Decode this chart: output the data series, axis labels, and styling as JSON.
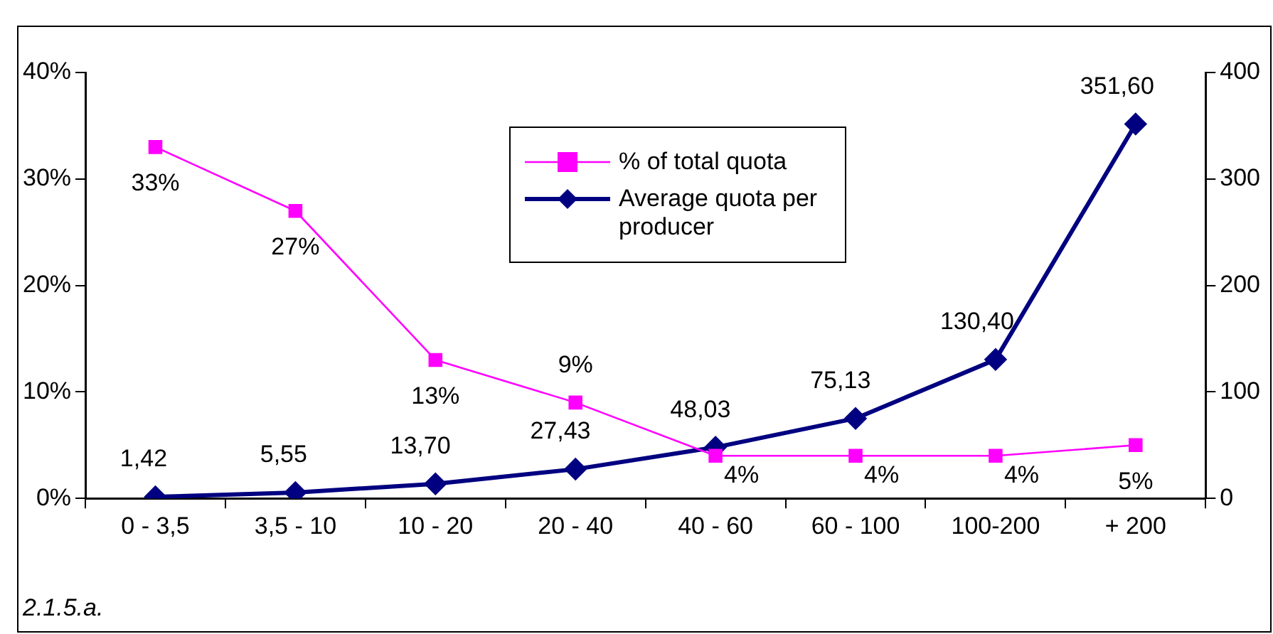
{
  "chart_data": {
    "type": "line",
    "categories": [
      "0 - 3,5",
      "3,5 - 10",
      "10 - 20",
      "20 - 40",
      "40 - 60",
      "60 - 100",
      "100-200",
      "+ 200"
    ],
    "series": [
      {
        "name": "% of total quota",
        "color": "#ff00ff",
        "marker": "square",
        "values": [
          33,
          27,
          13,
          9,
          4,
          4,
          4,
          5
        ],
        "value_labels": [
          "33%",
          "27%",
          "13%",
          "9%",
          "4%",
          "4%",
          "4%",
          "5%"
        ]
      },
      {
        "name": "Average quota per producer",
        "color": "#000080",
        "marker": "diamond",
        "axis": "y2",
        "values": [
          1.42,
          5.55,
          13.7,
          27.43,
          48.03,
          75.13,
          130.4,
          351.6
        ],
        "value_labels": [
          "1,42",
          "5,55",
          "13,70",
          "27,43",
          "48,03",
          "75,13",
          "130,40",
          "351,60"
        ]
      }
    ],
    "ylim": [
      0,
      40
    ],
    "yticks": [
      {
        "value": 0,
        "label": "0%"
      },
      {
        "value": 10,
        "label": "10%"
      },
      {
        "value": 20,
        "label": "20%"
      },
      {
        "value": 30,
        "label": "30%"
      },
      {
        "value": 40,
        "label": "40%"
      }
    ],
    "y2lim": [
      0,
      400
    ],
    "y2ticks": [
      0,
      100,
      200,
      300,
      400
    ],
    "grid": false,
    "legend": "top",
    "annotations": [
      "2.1.5.a."
    ]
  }
}
